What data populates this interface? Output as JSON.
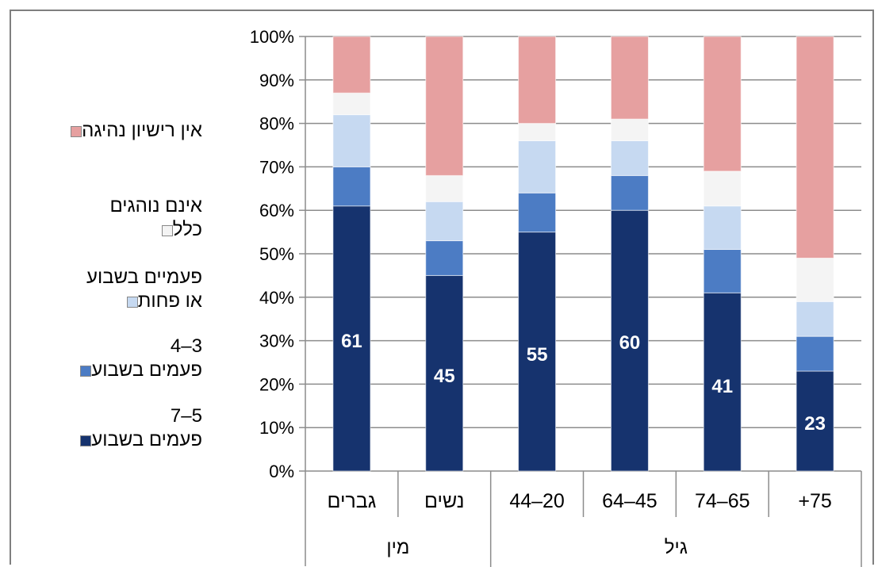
{
  "chart_data": {
    "type": "bar",
    "stacked": true,
    "percent": true,
    "ylim": [
      0,
      100
    ],
    "yticks": [
      "0%",
      "10%",
      "20%",
      "30%",
      "40%",
      "50%",
      "60%",
      "70%",
      "80%",
      "90%",
      "100%"
    ],
    "categories": [
      "גברים",
      "נשים",
      "44–20",
      "64–45",
      "74–65",
      "+75"
    ],
    "groups": [
      {
        "label": "מין",
        "span": [
          0,
          1
        ]
      },
      {
        "label": "גיל",
        "span": [
          2,
          5
        ]
      }
    ],
    "series": [
      {
        "name": "5–7\nפעמים בשבוע",
        "color": "#16336e",
        "values": [
          61,
          45,
          55,
          60,
          41,
          23
        ],
        "show_labels": true
      },
      {
        "name": "3–4\nפעמים בשבוע",
        "color": "#4c7cc4",
        "values": [
          9,
          8,
          9,
          8,
          10,
          8
        ]
      },
      {
        "name": "פעמיים בשבוע\nאו פחות",
        "color": "#c6d9f1",
        "values": [
          12,
          9,
          12,
          8,
          10,
          8
        ]
      },
      {
        "name": "אינם נוהגים\nכלל",
        "color": "#f4f4f4",
        "values": [
          5,
          6,
          4,
          5,
          8,
          10
        ]
      },
      {
        "name": "אין רישיון נהיגה",
        "color": "#e6a0a0",
        "values": [
          13,
          32,
          20,
          19,
          31,
          51
        ]
      }
    ],
    "grid": true,
    "legend": "left"
  }
}
